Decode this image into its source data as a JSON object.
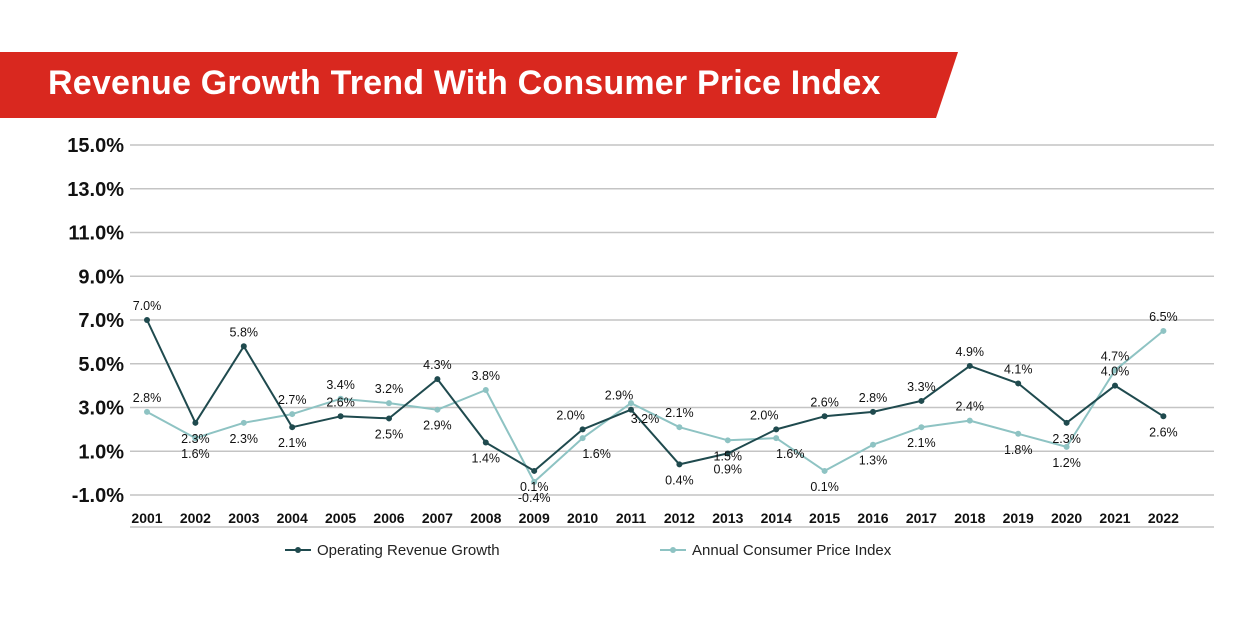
{
  "chart_data": {
    "type": "line",
    "title": "Revenue Growth Trend With Consumer Price Index",
    "categories": [
      "2001",
      "2002",
      "2003",
      "2004",
      "2005",
      "2006",
      "2007",
      "2008",
      "2009",
      "2010",
      "2011",
      "2012",
      "2013",
      "2014",
      "2015",
      "2016",
      "2017",
      "2018",
      "2019",
      "2020",
      "2021",
      "2022"
    ],
    "y_ticks": [
      "15.0%",
      "13.0%",
      "11.0%",
      "9.0%",
      "7.0%",
      "5.0%",
      "3.0%",
      "1.0%",
      "-1.0%"
    ],
    "ylim": [
      -1.0,
      15.0
    ],
    "grid": true,
    "legend_position": "bottom",
    "series": [
      {
        "name": "Operating Revenue Growth",
        "color": "#1f4a4e",
        "values": [
          7.0,
          2.3,
          5.8,
          2.1,
          2.6,
          2.5,
          4.3,
          1.4,
          0.1,
          2.0,
          2.9,
          0.4,
          0.9,
          2.0,
          2.6,
          2.8,
          3.3,
          4.9,
          4.1,
          2.3,
          4.0,
          2.6
        ],
        "labels": [
          "7.0%",
          "2.3%",
          "5.8%",
          "2.1%",
          "2.6%",
          "2.5%",
          "4.3%",
          "1.4%",
          "0.1%",
          "2.0%",
          "2.9%",
          "0.4%",
          "0.9%",
          "2.0%",
          "2.6%",
          "2.8%",
          "3.3%",
          "4.9%",
          "4.1%",
          "2.3%",
          "4.0%",
          "2.6%"
        ]
      },
      {
        "name": "Annual Consumer Price Index",
        "color": "#8ec3c3",
        "values": [
          2.8,
          1.6,
          2.3,
          2.7,
          3.4,
          3.2,
          2.9,
          3.8,
          -0.4,
          1.6,
          3.2,
          2.1,
          1.5,
          1.6,
          0.1,
          1.3,
          2.1,
          2.4,
          1.8,
          1.2,
          4.7,
          6.5
        ],
        "labels": [
          "2.8%",
          "1.6%",
          "2.3%",
          "2.7%",
          "3.4%",
          "3.2%",
          "2.9%",
          "3.8%",
          "-0.4%",
          "1.6%",
          "3.2%",
          "2.1%",
          "1.5%",
          "1.6%",
          "0.1%",
          "1.3%",
          "2.1%",
          "2.4%",
          "1.8%",
          "1.2%",
          "4.7%",
          "6.5%"
        ]
      }
    ]
  },
  "colors": {
    "banner": "#d9281f",
    "grid": "#c4c4c4"
  }
}
